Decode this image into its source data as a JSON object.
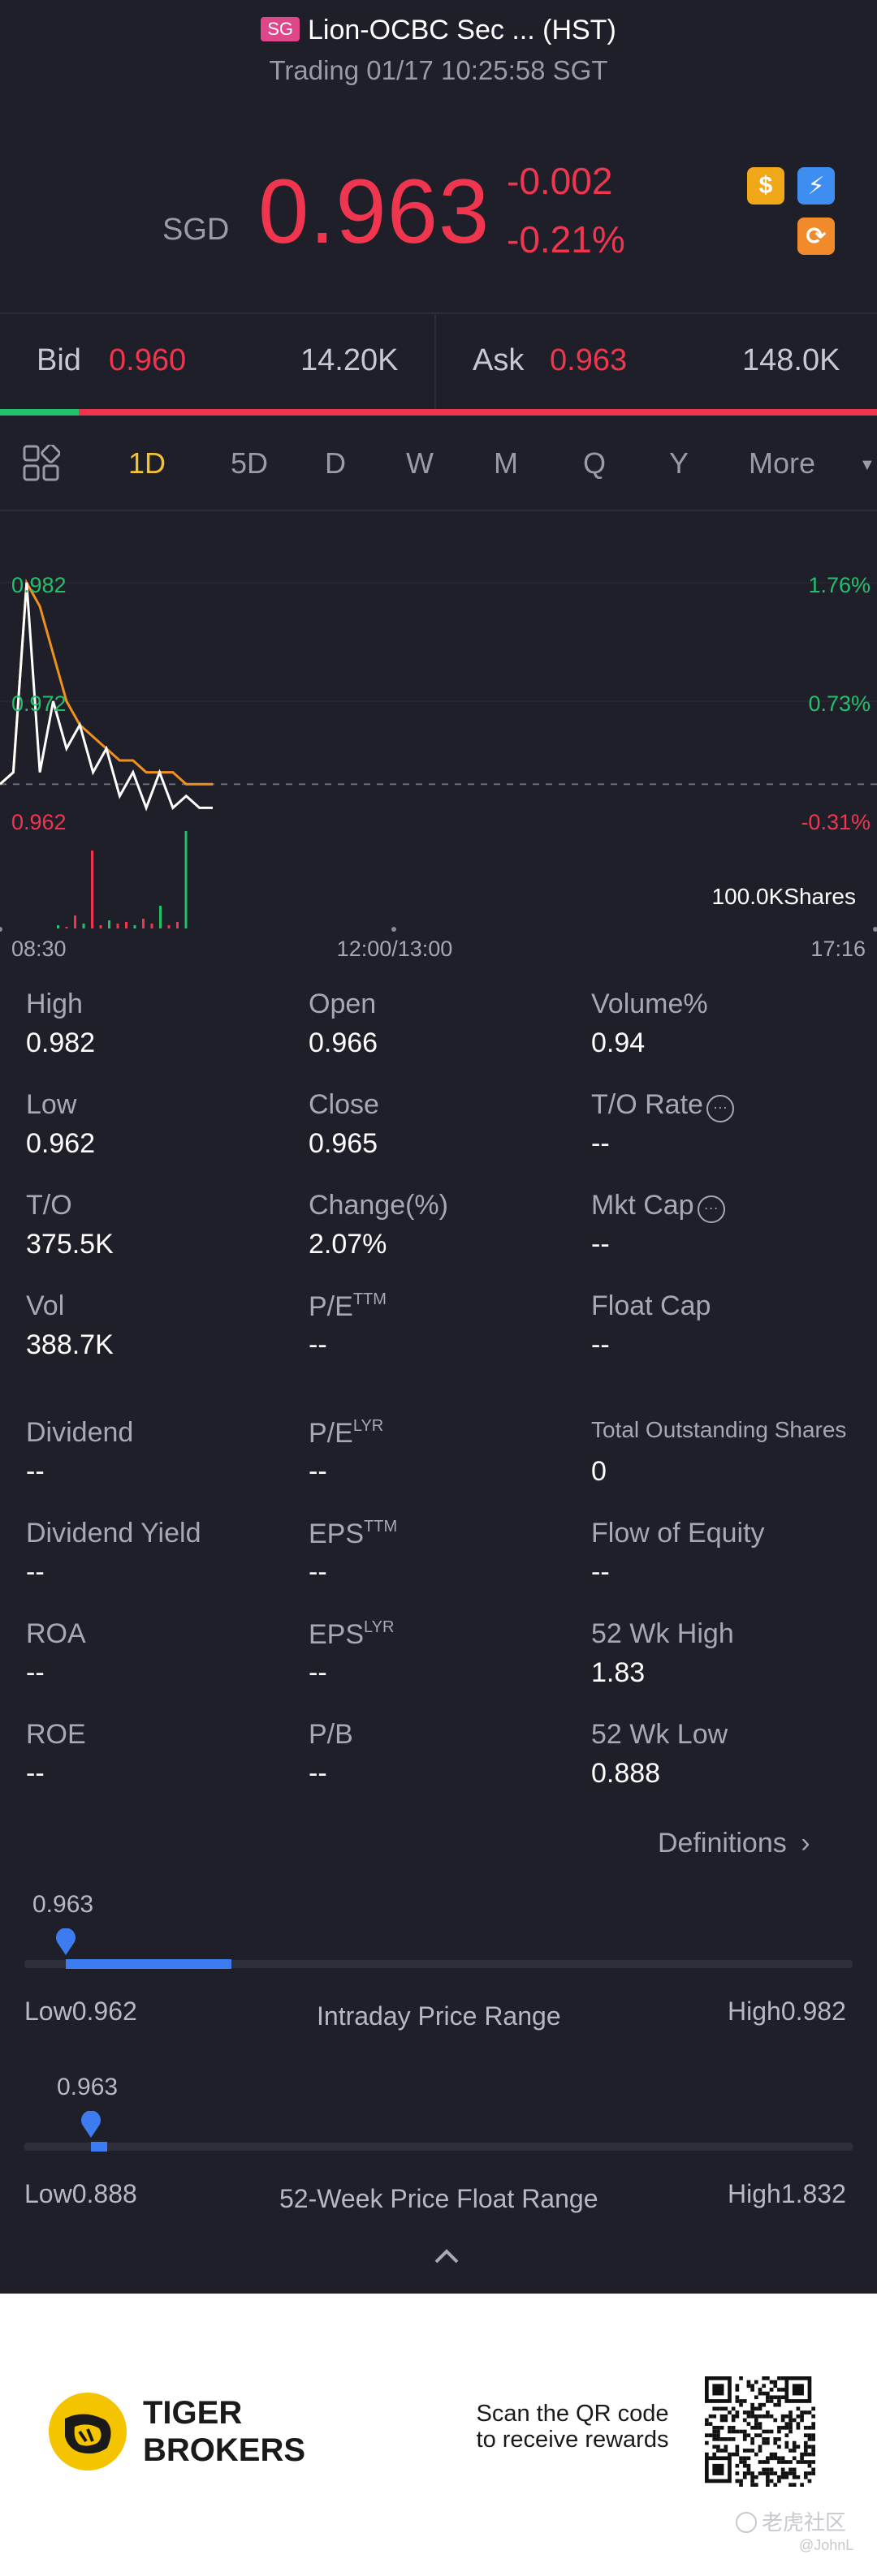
{
  "header": {
    "market_badge": "SG",
    "title": "Lion-OCBC Sec ... (HST)",
    "status": "Trading 01/17 10:25:58 SGT",
    "currency": "SGD",
    "price": "0.963",
    "change": "-0.002",
    "change_pct": "-0.21%",
    "icons": [
      "dollar-icon",
      "flash-icon",
      "swap-icon"
    ]
  },
  "bidask": {
    "bid_label": "Bid",
    "bid_price": "0.960",
    "bid_size": "14.20K",
    "ask_label": "Ask",
    "ask_price": "0.963",
    "ask_size": "148.0K",
    "bid_ratio": 0.09
  },
  "tabs": [
    "1D",
    "5D",
    "D",
    "W",
    "M",
    "Q",
    "Y",
    "More"
  ],
  "active_tab": "1D",
  "chart": {
    "y_left": [
      "0.982",
      "0.972",
      "0.962"
    ],
    "y_right": [
      "1.76%",
      "0.73%",
      "-0.31%"
    ],
    "volume_label": "100.0KShares",
    "x_labels": [
      "08:30",
      "12:00/13:00",
      "17:16"
    ]
  },
  "chart_data": {
    "type": "line",
    "ylim": [
      0.962,
      0.982
    ],
    "prev_close": 0.965,
    "series": [
      {
        "values": [
          0.965,
          0.966,
          0.982,
          0.98,
          0.976,
          0.972,
          0.97,
          0.969,
          0.968,
          0.967,
          0.967,
          0.966,
          0.966,
          0.966,
          0.965,
          0.965,
          0.965
        ]
      },
      {
        "values": [
          0.965,
          0.966,
          0.982,
          0.966,
          0.972,
          0.968,
          0.97,
          0.966,
          0.968,
          0.964,
          0.966,
          0.963,
          0.966,
          0.963,
          0.964,
          0.963,
          0.963
        ]
      }
    ],
    "volume": [
      2,
      1,
      8,
      3,
      48,
      2,
      5,
      3,
      4,
      2,
      6,
      3,
      14,
      2,
      4,
      60
    ]
  },
  "stats": [
    {
      "label": "High",
      "value": "0.982"
    },
    {
      "label": "Open",
      "value": "0.966"
    },
    {
      "label": "Volume%",
      "value": "0.94"
    },
    {
      "label": "Low",
      "value": "0.962"
    },
    {
      "label": "Close",
      "value": "0.965"
    },
    {
      "label": "T/O Rate",
      "value": "--"
    },
    {
      "label": "T/O",
      "value": "375.5K"
    },
    {
      "label": "Change(%)",
      "value": "2.07%"
    },
    {
      "label": "Mkt Cap",
      "value": "--"
    },
    {
      "label": "Vol",
      "value": "388.7K"
    },
    {
      "label": "P/E",
      "sup": "TTM",
      "value": "--"
    },
    {
      "label": "Float Cap",
      "value": "--"
    },
    {
      "label": "Dividend",
      "value": "--"
    },
    {
      "label": "P/E",
      "sup": "LYR",
      "value": "--"
    },
    {
      "label": "Total Outstanding Shares",
      "value": "0"
    },
    {
      "label": "Dividend Yield",
      "value": "--"
    },
    {
      "label": "EPS",
      "sup": "TTM",
      "value": "--"
    },
    {
      "label": "Flow of Equity",
      "value": "--"
    },
    {
      "label": "ROA",
      "value": "--"
    },
    {
      "label": "EPS",
      "sup": "LYR",
      "value": "--"
    },
    {
      "label": "52 Wk High",
      "value": "1.83"
    },
    {
      "label": "ROE",
      "value": "--"
    },
    {
      "label": "P/B",
      "value": "--"
    },
    {
      "label": "52 Wk Low",
      "value": "0.888"
    }
  ],
  "definitions_label": "Definitions",
  "intraday": {
    "current": "0.963",
    "low_label": "Low0.962",
    "high_label": "High0.982",
    "title": "Intraday Price Range",
    "position_pct": 5,
    "fill_pct": 20
  },
  "week52": {
    "current": "0.963",
    "low_label": "Low0.888",
    "high_label": "High1.832",
    "title": "52-Week Price Float Range",
    "position_pct": 8,
    "fill_pct": 2
  },
  "footer": {
    "brand_line1": "TIGER",
    "brand_line2": "BROKERS",
    "scan_line1": "Scan the QR code",
    "scan_line2": "to receive rewards",
    "watermark": "老虎社区",
    "watermark_user": "@JohnL"
  },
  "colors": {
    "up": "#f0364f",
    "down": "#22c06b",
    "accent": "#f2c230",
    "range_fill": "#3d7cf0",
    "bg": "#1f1f29"
  }
}
